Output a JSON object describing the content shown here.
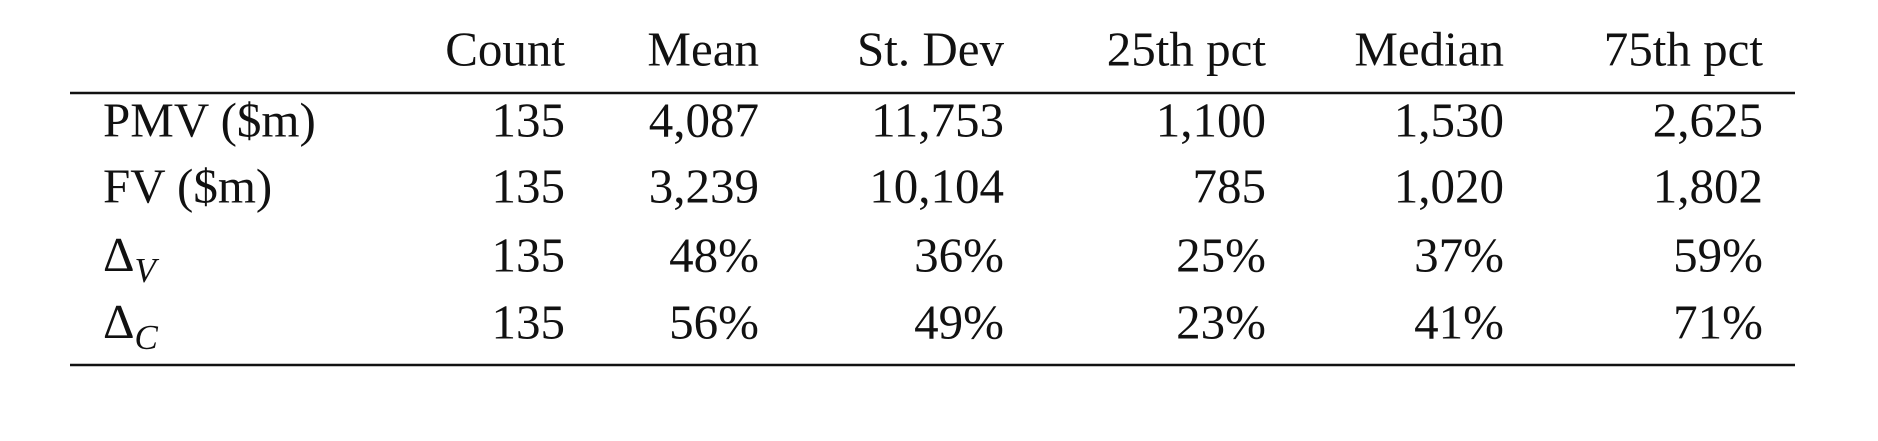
{
  "table": {
    "header": [
      "Count",
      "Mean",
      "St. Dev",
      "25th pct",
      "Median",
      "75th pct"
    ],
    "rows": [
      {
        "label": "PMV ($m)",
        "cells": [
          "135",
          "4,087",
          "11,753",
          "1,100",
          "1,530",
          "2,625"
        ]
      },
      {
        "label": "FV ($m)",
        "cells": [
          "135",
          "3,239",
          "10,104",
          "785",
          "1,020",
          "1,802"
        ]
      },
      {
        "label": {
          "symbol": "Δ",
          "subscript": "V"
        },
        "cells": [
          "135",
          "48%",
          "36%",
          "25%",
          "37%",
          "59%"
        ]
      },
      {
        "label": {
          "symbol": "Δ",
          "subscript": "C"
        },
        "cells": [
          "135",
          "56%",
          "49%",
          "23%",
          "41%",
          "71%"
        ]
      }
    ]
  }
}
